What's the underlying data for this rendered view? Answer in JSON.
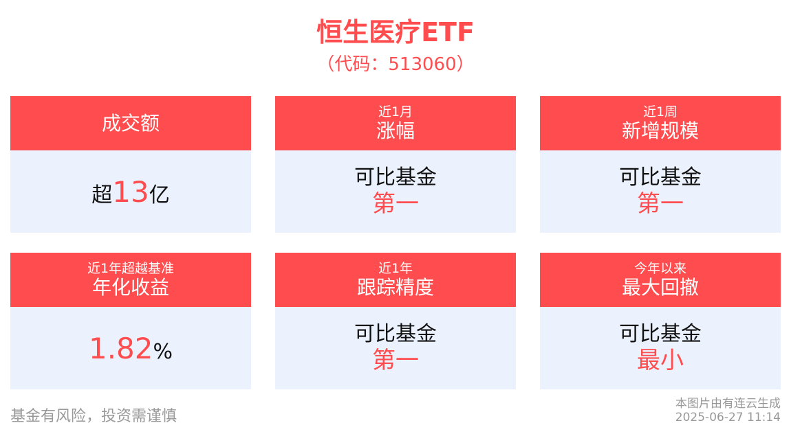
{
  "title": "恒生医疗ETF",
  "code": "（代码：513060）",
  "cards": [
    {
      "sub": "",
      "main": "成交额",
      "prefix": "超",
      "number": "13",
      "suffix": "亿"
    },
    {
      "sub": "近1月",
      "main": "涨幅",
      "line1": "可比基金",
      "line2": "第一"
    },
    {
      "sub": "近1周",
      "main": "新增规模",
      "line1": "可比基金",
      "line2": "第一"
    },
    {
      "sub": "近1年超越基准",
      "main": "年化收益",
      "prefix": "",
      "number": "1.82",
      "suffix": "%"
    },
    {
      "sub": "近1年",
      "main": "跟踪精度",
      "line1": "可比基金",
      "line2": "第一"
    },
    {
      "sub": "今年以来",
      "main": "最大回撤",
      "line1": "可比基金",
      "line2": "最小"
    }
  ],
  "footer": {
    "risk": "基金有风险，投资需谨慎",
    "source": "本图片由有连云生成",
    "timestamp": "2025-06-27 11:14"
  },
  "colors": {
    "accent": "#ff4d4f",
    "card_bg": "#ebf2fe"
  }
}
